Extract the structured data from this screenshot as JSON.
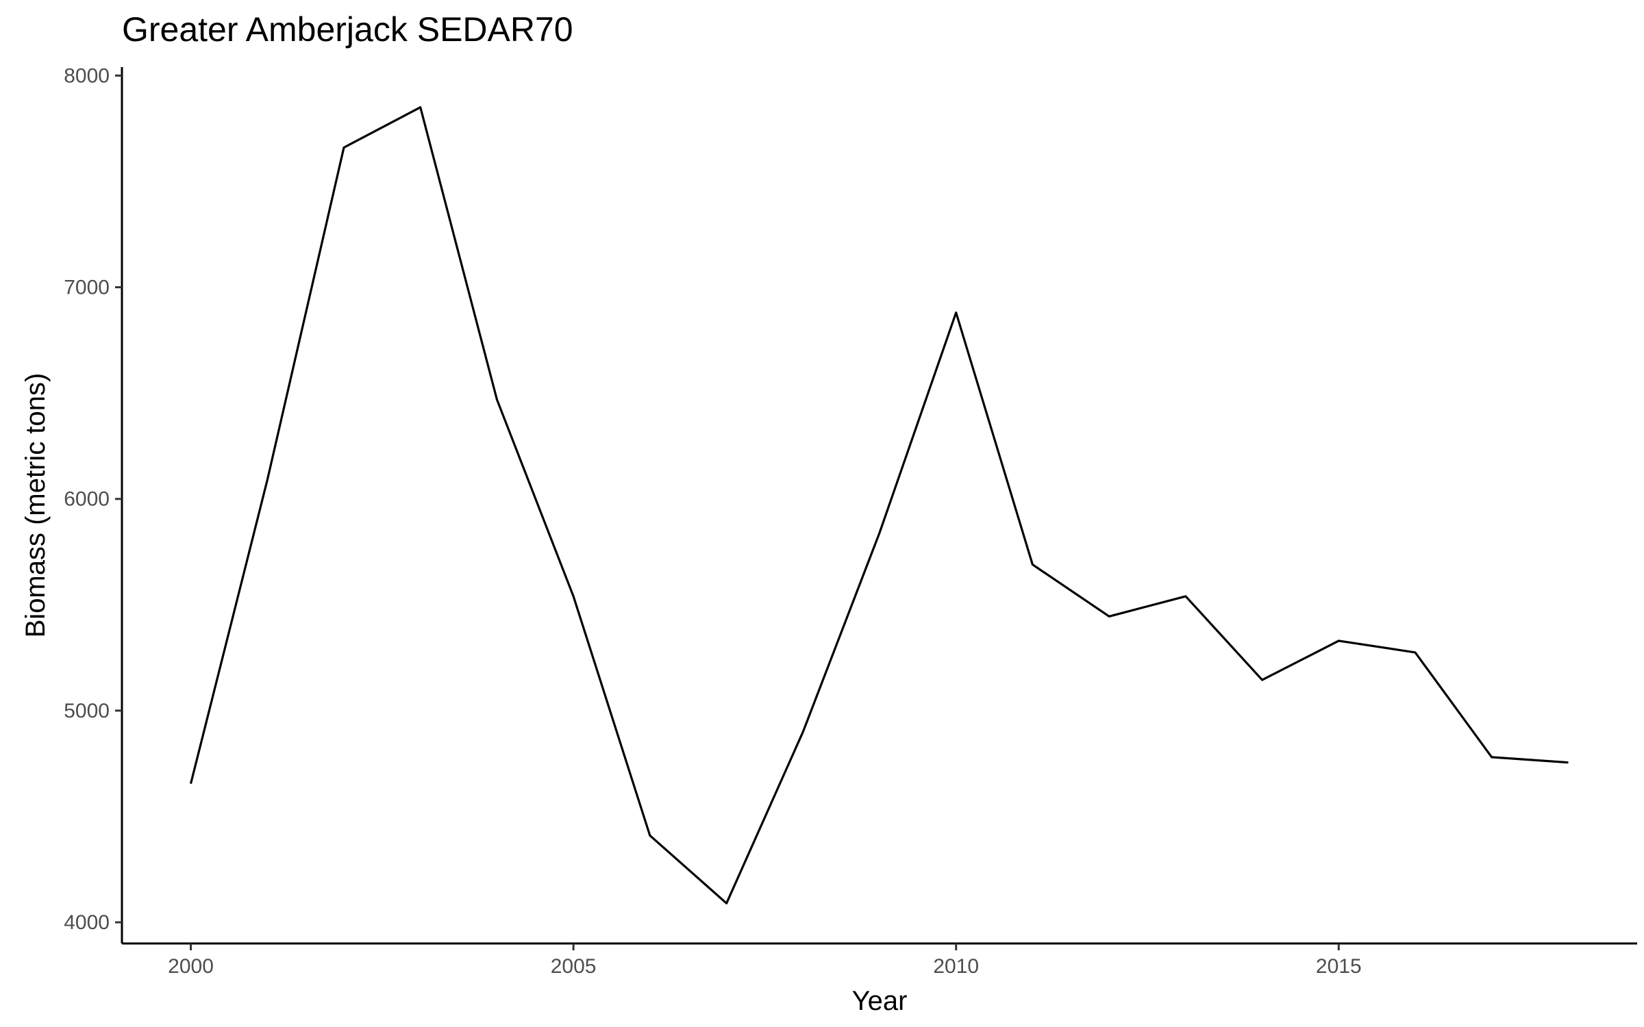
{
  "chart_data": {
    "type": "line",
    "title": "Greater Amberjack SEDAR70",
    "xlabel": "Year",
    "ylabel": "Biomass (metric tons)",
    "xlim": [
      1999.1,
      2018.9
    ],
    "ylim": [
      3900,
      8040
    ],
    "xticks": [
      2000,
      2005,
      2010,
      2015
    ],
    "yticks": [
      4000,
      5000,
      6000,
      7000,
      8000
    ],
    "grid": false,
    "legend": "none",
    "line_color": "#000000",
    "x": [
      2000,
      2001,
      2002,
      2003,
      2004,
      2005,
      2006,
      2007,
      2008,
      2009,
      2010,
      2011,
      2012,
      2013,
      2014,
      2015,
      2016,
      2017,
      2018
    ],
    "values": [
      4655,
      6090,
      7660,
      7850,
      6470,
      5540,
      4410,
      4090,
      4900,
      5840,
      6880,
      5690,
      5445,
      5540,
      5145,
      5330,
      5275,
      4780,
      4755
    ]
  }
}
